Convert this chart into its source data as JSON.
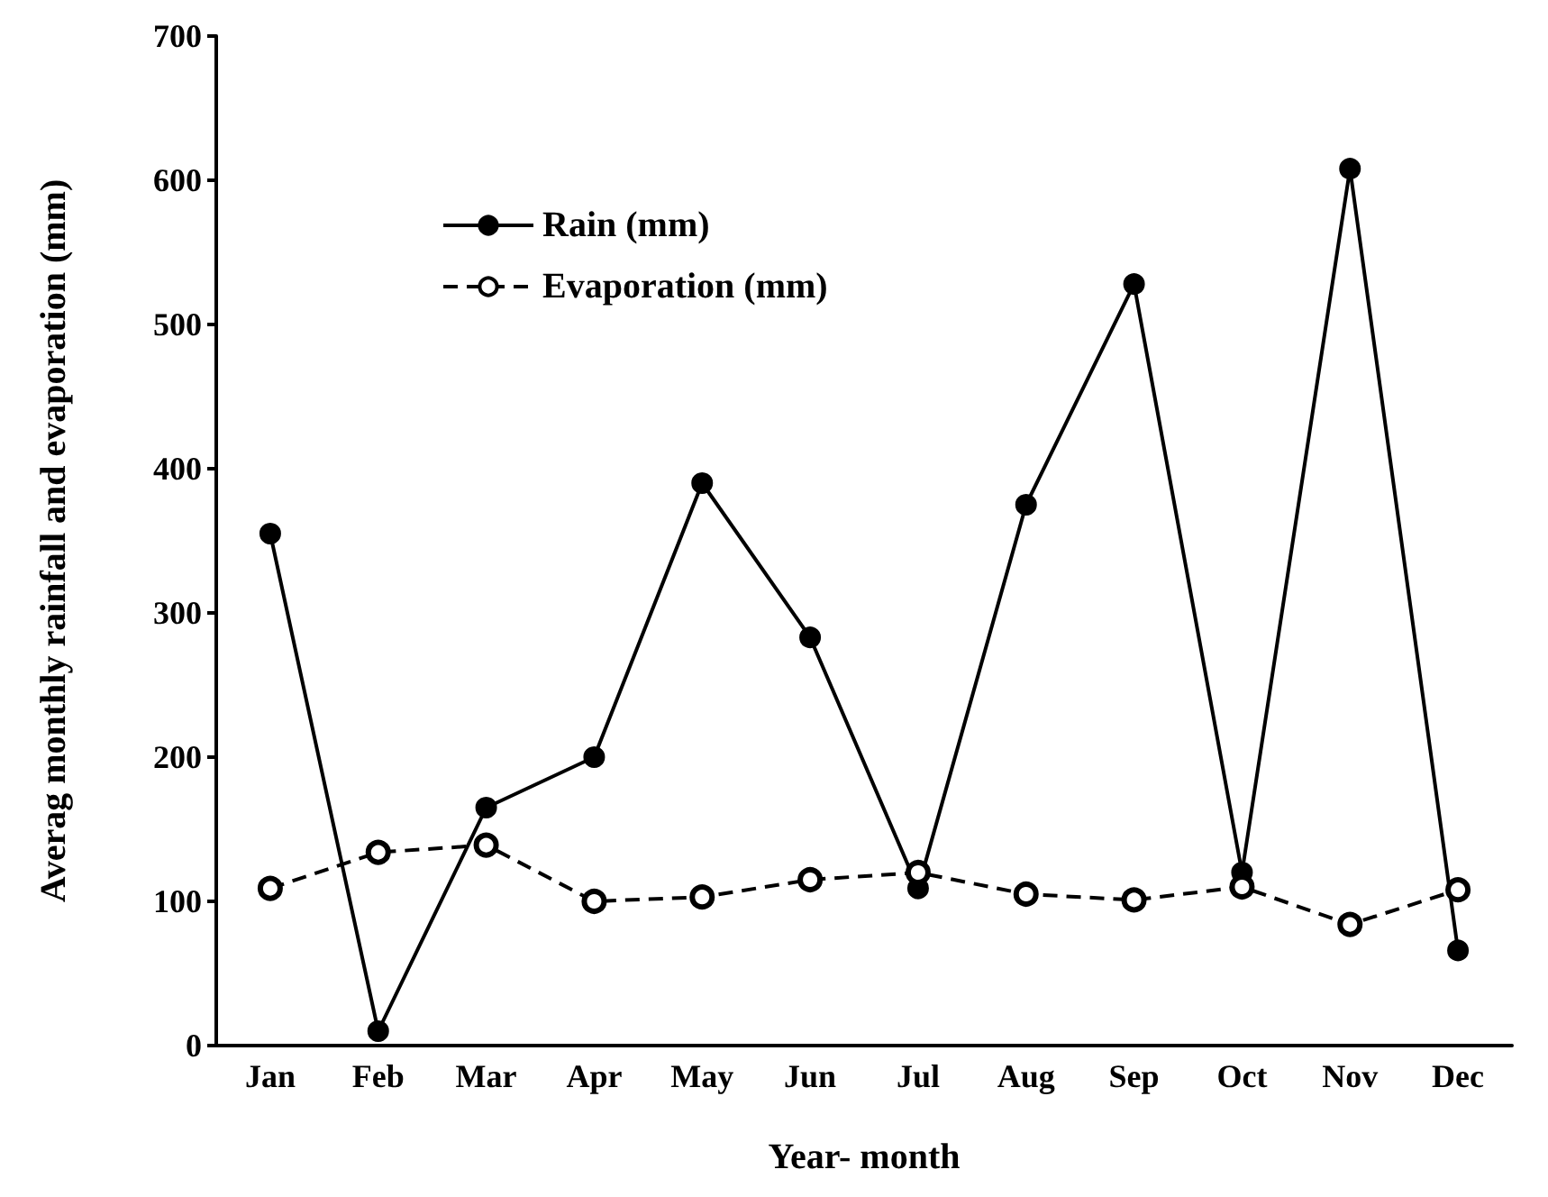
{
  "chart_data": {
    "type": "line",
    "xlabel": "Year- month",
    "ylabel": "Averag monthly rainfall and evaporation (mm)",
    "categories": [
      "Jan",
      "Feb",
      "Mar",
      "Apr",
      "May",
      "Jun",
      "Jul",
      "Aug",
      "Sep",
      "Oct",
      "Nov",
      "Dec"
    ],
    "series": [
      {
        "name": "Rain (mm)",
        "color": "#000000",
        "marker": "circle",
        "line_style": "solid",
        "values": [
          355,
          10,
          165,
          200,
          390,
          283,
          109,
          375,
          528,
          120,
          608,
          66
        ]
      },
      {
        "name": "Evaporation (mm)",
        "color": "#000000",
        "marker": "circle",
        "line_style": "dashed",
        "values": [
          109,
          134,
          139,
          100,
          103,
          115,
          120,
          105,
          101,
          110,
          84,
          108
        ]
      }
    ],
    "ylim": [
      0,
      700
    ],
    "yticks": [
      0,
      100,
      200,
      300,
      400,
      500,
      600,
      700
    ],
    "grid": false,
    "legend": "top left"
  }
}
